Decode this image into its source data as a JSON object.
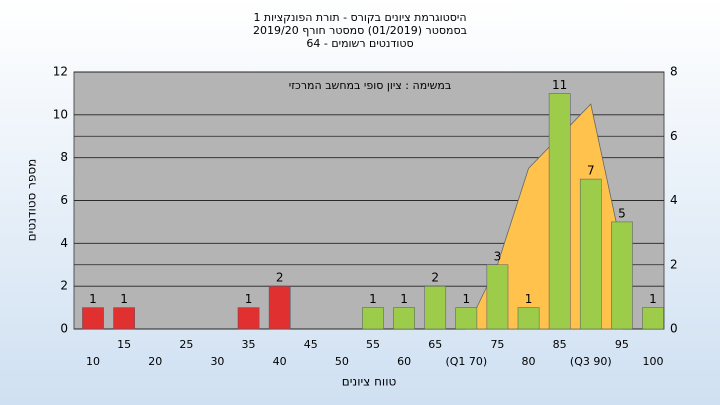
{
  "chart_data": {
    "type": "bar",
    "title": [
      "היסטוגרמת ציונים בקורס - תורת הפונקציות 1",
      "בסמסטר  (01/2019)  סמסטר חורף 2019/20",
      "סטודנטים רשומים - 64"
    ],
    "annotation": "במשימה : ציון סופי במחשב המרכזי",
    "x_label": "טווח ציונים",
    "y_label": "מספר סטודנטים",
    "categories": [
      "10",
      "15",
      "20",
      "25",
      "30",
      "35",
      "40",
      "45",
      "50",
      "55",
      "60",
      "65",
      "(Q1 70)",
      "75",
      "80",
      "85",
      "(Q3 90)",
      "95",
      "100"
    ],
    "values": [
      1,
      1,
      0,
      0,
      0,
      1,
      2,
      0,
      0,
      1,
      1,
      2,
      1,
      3,
      1,
      11,
      7,
      5,
      1
    ],
    "colors": [
      "#e03030",
      "#e03030",
      "#e03030",
      "#e03030",
      "#e03030",
      "#e03030",
      "#e03030",
      "#e03030",
      "#e03030",
      "#9ccc4a",
      "#9ccc4a",
      "#9ccc4a",
      "#9ccc4a",
      "#9ccc4a",
      "#9ccc4a",
      "#9ccc4a",
      "#9ccc4a",
      "#9ccc4a",
      "#9ccc4a"
    ],
    "area": {
      "axis": "y2",
      "color": "#ffc34d",
      "values": [
        null,
        null,
        null,
        null,
        null,
        null,
        null,
        null,
        null,
        null,
        null,
        null,
        0,
        2,
        5,
        6,
        7,
        2.5,
        null
      ]
    },
    "ylim": [
      0,
      12
    ],
    "yticks": [
      0,
      2,
      4,
      6,
      8,
      10,
      12
    ],
    "y2lim": [
      0,
      8
    ],
    "y2ticks": [
      0,
      2,
      4,
      6,
      8
    ],
    "grid": true
  }
}
